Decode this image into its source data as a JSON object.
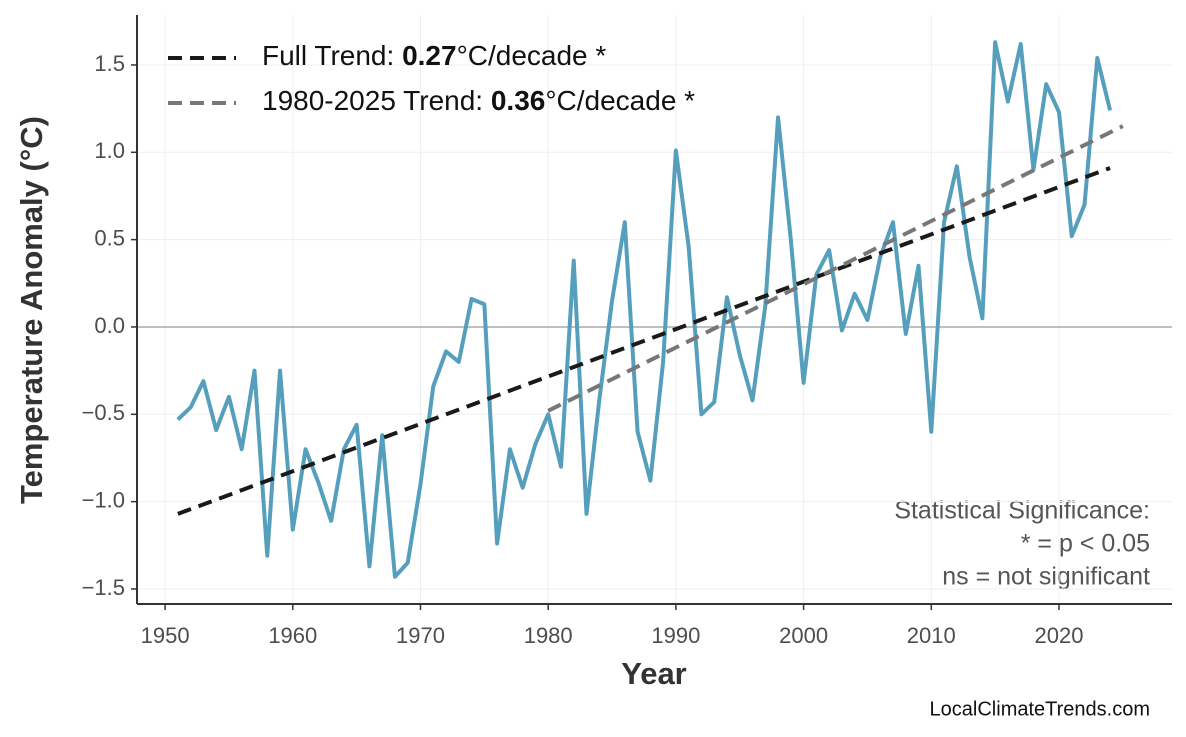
{
  "chart_data": {
    "type": "line",
    "x_label": "Year",
    "y_label": "Temperature Anomaly (°C)",
    "xlim": [
      1947.8,
      2028.85
    ],
    "ylim": [
      -1.586,
      1.786
    ],
    "xticks": [
      1950,
      1960,
      1970,
      1980,
      1990,
      2000,
      2010,
      2020
    ],
    "yticks": [
      {
        "value": -1.5,
        "label": "−1.5"
      },
      {
        "value": -1.0,
        "label": "−1.0"
      },
      {
        "value": -0.5,
        "label": "−0.5"
      },
      {
        "value": 0,
        "label": "0.0"
      },
      0.5,
      {
        "value": 1.0,
        "label": "1.0"
      },
      1.5
    ],
    "grid": true,
    "zero_line": true,
    "series": [
      {
        "color": "#559fbd",
        "dash": false,
        "x": [
          1951,
          1952,
          1953,
          1954,
          1955,
          1956,
          1957,
          1958,
          1959,
          1960,
          1961,
          1962,
          1963,
          1964,
          1965,
          1966,
          1967,
          1968,
          1969,
          1970,
          1971,
          1972,
          1973,
          1974,
          1975,
          1976,
          1977,
          1978,
          1979,
          1980,
          1981,
          1982,
          1983,
          1984,
          1985,
          1986,
          1987,
          1988,
          1989,
          1990,
          1991,
          1992,
          1993,
          1994,
          1995,
          1996,
          1997,
          1998,
          1999,
          2000,
          2001,
          2002,
          2003,
          2004,
          2005,
          2006,
          2007,
          2008,
          2009,
          2010,
          2011,
          2012,
          2013,
          2014,
          2015,
          2016,
          2017,
          2018,
          2019,
          2020,
          2021,
          2022,
          2023,
          2024
        ],
        "values": [
          -0.53,
          -0.46,
          -0.31,
          -0.59,
          -0.4,
          -0.7,
          -0.25,
          -1.31,
          -0.25,
          -1.16,
          -0.7,
          -0.89,
          -1.11,
          -0.7,
          -0.56,
          -1.37,
          -0.62,
          -1.43,
          -1.35,
          -0.9,
          -0.34,
          -0.14,
          -0.2,
          0.16,
          0.13,
          -1.24,
          -0.7,
          -0.92,
          -0.67,
          -0.5,
          -0.8,
          0.38,
          -1.07,
          -0.42,
          0.15,
          0.6,
          -0.6,
          -0.88,
          -0.2,
          1.01,
          0.46,
          -0.5,
          -0.43,
          0.17,
          -0.16,
          -0.42,
          0.12,
          1.2,
          0.5,
          -0.32,
          0.3,
          0.44,
          -0.02,
          0.19,
          0.04,
          0.4,
          0.6,
          -0.04,
          0.35,
          -0.6,
          0.6,
          0.92,
          0.4,
          0.05,
          1.63,
          1.29,
          1.62,
          0.9,
          1.39,
          1.23,
          0.52,
          0.7,
          1.54,
          1.24
        ]
      },
      {
        "name_parts": [
          "Full Trend: ",
          "0.27",
          "°C/decade *"
        ],
        "color": "#1a1a1a",
        "dash": true,
        "x": [
          1951,
          2024
        ],
        "values": [
          -1.07,
          0.91
        ]
      },
      {
        "name_parts": [
          "1980-2025 Trend: ",
          "0.36",
          "°C/decade *"
        ],
        "color": "#777777",
        "dash": true,
        "x": [
          1980,
          2025
        ],
        "values": [
          -0.48,
          1.15
        ]
      }
    ],
    "annotation": [
      "Statistical Significance:",
      "* = p < 0.05",
      "ns = not significant"
    ],
    "watermark": "LocalClimateTrends.com"
  }
}
